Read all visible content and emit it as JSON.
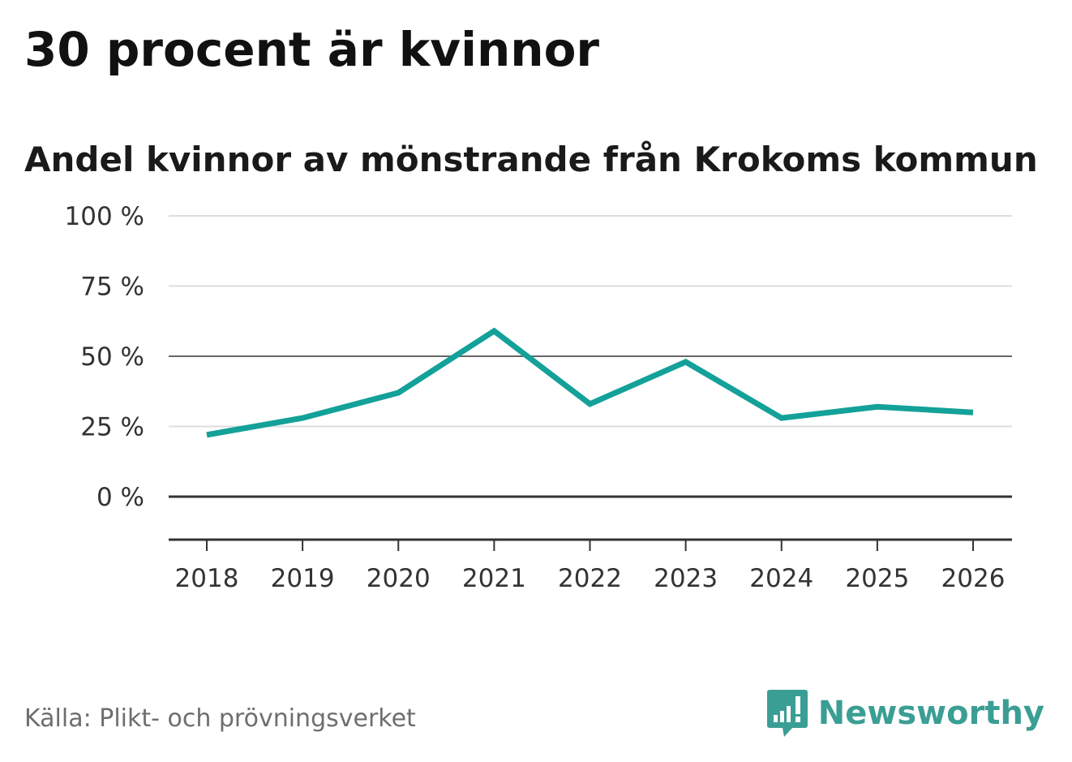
{
  "title": "30 procent är kvinnor",
  "subtitle": "Andel kvinnor av mönstrande från Krokoms kommun",
  "source": "Källa: Plikt- och prövningsverket",
  "brand": {
    "name": "Newsworthy",
    "logo_icon": "newsworthy-logo-icon",
    "color": "#3b9e94"
  },
  "colors": {
    "line": "#13a199",
    "grid": "#dddddd",
    "reference_line": "#666666",
    "axis": "#333333",
    "tick_text": "#333333"
  },
  "chart_data": {
    "type": "line",
    "x": [
      "2018",
      "2019",
      "2020",
      "2021",
      "2022",
      "2023",
      "2024",
      "2025",
      "2026"
    ],
    "series": [
      {
        "values": [
          22,
          28,
          37,
          59,
          33,
          48,
          28,
          32,
          30
        ]
      }
    ],
    "ylim": [
      -15,
      100
    ],
    "yticks": [
      0,
      25,
      50,
      75,
      100
    ],
    "ytick_labels": [
      "0 %",
      "25 %",
      "50 %",
      "75 %",
      "100 %"
    ],
    "reference_lines": [
      0,
      50
    ],
    "grid": true,
    "legend": false
  }
}
